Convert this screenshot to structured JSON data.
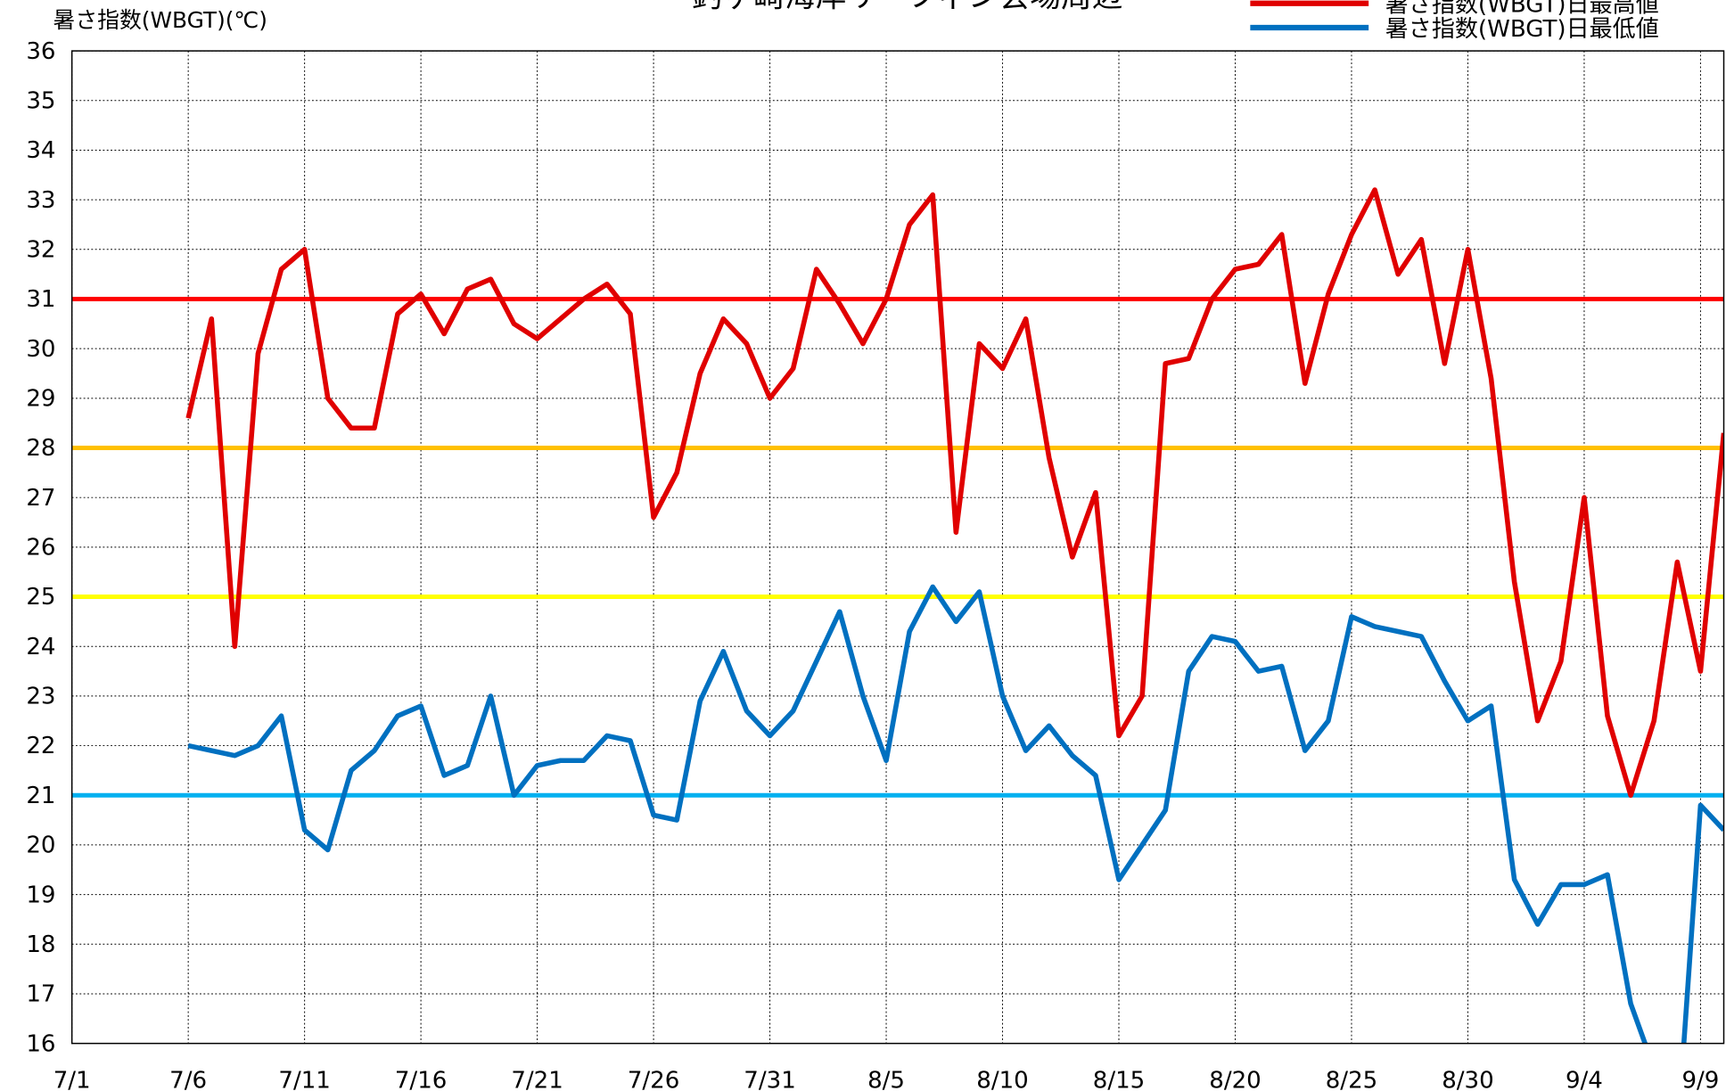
{
  "chart_data": {
    "type": "line",
    "title": "釣ヶ崎海岸サーフィン会場周辺",
    "ylabel": "暑さ指数(WBGT)(℃)",
    "x": [
      "7/6",
      "7/7",
      "7/8",
      "7/9",
      "7/10",
      "7/11",
      "7/12",
      "7/13",
      "7/14",
      "7/15",
      "7/16",
      "7/17",
      "7/18",
      "7/19",
      "7/20",
      "7/21",
      "7/22",
      "7/23",
      "7/24",
      "7/25",
      "7/26",
      "7/27",
      "7/28",
      "7/29",
      "7/30",
      "7/31",
      "8/1",
      "8/2",
      "8/3",
      "8/4",
      "8/5",
      "8/6",
      "8/7",
      "8/8",
      "8/9",
      "8/10",
      "8/11",
      "8/12",
      "8/13",
      "8/14",
      "8/15",
      "8/16",
      "8/17",
      "8/18",
      "8/19",
      "8/20",
      "8/21",
      "8/22",
      "8/23",
      "8/24",
      "8/25",
      "8/26",
      "8/27",
      "8/28",
      "8/29",
      "8/30",
      "8/31",
      "9/1",
      "9/2",
      "9/3",
      "9/4",
      "9/5",
      "9/6",
      "9/7",
      "9/8",
      "9/9",
      "9/10"
    ],
    "series": [
      {
        "name": "暑さ指数(WBGT)日最高値",
        "color": "#e00000",
        "values": [
          28.6,
          30.6,
          24.0,
          29.9,
          31.6,
          32.0,
          29.0,
          28.4,
          28.4,
          30.7,
          31.1,
          30.3,
          31.2,
          31.4,
          30.5,
          30.2,
          30.6,
          31.0,
          31.3,
          30.7,
          26.6,
          27.5,
          29.5,
          30.6,
          30.1,
          29.0,
          29.6,
          31.6,
          30.9,
          30.1,
          31.0,
          32.5,
          33.1,
          26.3,
          30.1,
          29.6,
          30.6,
          27.8,
          25.8,
          27.1,
          22.2,
          23.0,
          29.7,
          29.8,
          31.0,
          31.6,
          31.7,
          32.3,
          29.3,
          31.1,
          32.3,
          33.2,
          31.5,
          32.2,
          29.7,
          32.0,
          29.4,
          25.3,
          22.5,
          23.7,
          27.0,
          22.6,
          21.0,
          22.5,
          25.7,
          23.5,
          28.3
        ]
      },
      {
        "name": "暑さ指数(WBGT)日最低値",
        "color": "#0070c0",
        "values": [
          22.0,
          21.9,
          21.8,
          22.0,
          22.6,
          20.3,
          19.9,
          21.5,
          21.9,
          22.6,
          22.8,
          21.4,
          21.6,
          23.0,
          21.0,
          21.6,
          21.7,
          21.7,
          22.2,
          22.1,
          20.6,
          20.5,
          22.9,
          23.9,
          22.7,
          22.2,
          22.7,
          23.7,
          24.7,
          23.0,
          21.7,
          24.3,
          25.2,
          24.5,
          25.1,
          23.0,
          21.9,
          22.4,
          21.8,
          21.4,
          19.3,
          20.0,
          20.7,
          23.5,
          24.2,
          24.1,
          23.5,
          23.6,
          21.9,
          22.5,
          24.6,
          24.4,
          24.3,
          24.2,
          23.3,
          22.5,
          22.8,
          19.3,
          18.4,
          19.2,
          19.2,
          19.4,
          16.8,
          15.5,
          14.1,
          20.8,
          20.3
        ]
      }
    ],
    "reference_lines": [
      {
        "value": 31,
        "color": "#ff0000"
      },
      {
        "value": 28,
        "color": "#ffc000"
      },
      {
        "value": 25,
        "color": "#ffff00"
      },
      {
        "value": 21,
        "color": "#00b0f0"
      }
    ],
    "xlim": [
      "7/1",
      "9/10"
    ],
    "xticks": [
      "7/1",
      "7/6",
      "7/11",
      "7/16",
      "7/21",
      "7/26",
      "7/31",
      "8/5",
      "8/10",
      "8/15",
      "8/20",
      "8/25",
      "8/30",
      "9/4",
      "9/9"
    ],
    "ylim": [
      16,
      36
    ],
    "yticks": [
      16,
      17,
      18,
      19,
      20,
      21,
      22,
      23,
      24,
      25,
      26,
      27,
      28,
      29,
      30,
      31,
      32,
      33,
      34,
      35,
      36
    ],
    "grid": true
  }
}
